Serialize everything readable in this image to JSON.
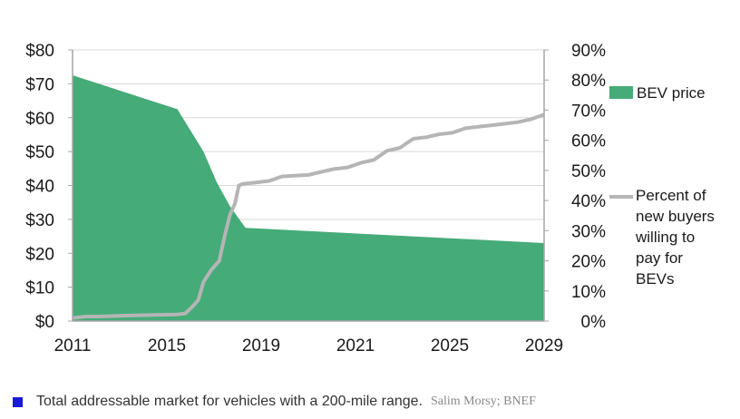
{
  "chart_data": {
    "type": "area",
    "x_tick_labels": [
      "2011",
      "2015",
      "2019",
      "2021",
      "2025",
      "2029"
    ],
    "xlim": [
      2011,
      2029
    ],
    "y_left": {
      "ylim": [
        0,
        80
      ],
      "tick_labels": [
        "$0",
        "$10",
        "$20",
        "$30",
        "$40",
        "$50",
        "$60",
        "$70",
        "$80"
      ]
    },
    "y_right": {
      "ylim": [
        0,
        90
      ],
      "tick_labels": [
        "0%",
        "10%",
        "20%",
        "30%",
        "40%",
        "50%",
        "60%",
        "70%",
        "80%",
        "90%"
      ]
    },
    "grid": true,
    "legend_position": "right",
    "series": [
      {
        "name": "BEV price",
        "type": "area",
        "axis": "left",
        "color": "#45ab78",
        "x": [
          2011,
          2015,
          2016,
          2016.5,
          2017,
          2017.6,
          2029
        ],
        "y": [
          72.5,
          62.5,
          50,
          41,
          34,
          27.5,
          23
        ]
      },
      {
        "name": "Percent of new buyers willing to pay for BEVs",
        "legend_lines": [
          "Percent of",
          "new buyers",
          "willing to",
          "pay for",
          "BEVs"
        ],
        "type": "line",
        "axis": "right",
        "color": "#b5b5b5",
        "x": [
          2011,
          2011.5,
          2012,
          2013,
          2014,
          2015,
          2015.3,
          2015.6,
          2015.8,
          2016,
          2016.3,
          2016.6,
          2016.8,
          2017,
          2017.2,
          2017.35,
          2017.5,
          2018,
          2018.5,
          2019,
          2020,
          2020.5,
          2021,
          2021.5,
          2022,
          2022.5,
          2023,
          2023.5,
          2024,
          2024.5,
          2025,
          2025.5,
          2026,
          2026.5,
          2027,
          2027.5,
          2028,
          2028.5,
          2029
        ],
        "y": [
          1,
          1.5,
          1.5,
          1.8,
          2,
          2.2,
          2.5,
          5,
          7,
          13,
          17,
          20,
          28,
          35,
          39,
          45,
          45.5,
          46,
          46.5,
          48,
          48.5,
          49.5,
          50.5,
          51,
          52.5,
          53.5,
          56.5,
          57.5,
          60.5,
          61,
          62,
          62.5,
          64,
          64.5,
          65,
          65.5,
          66,
          67,
          68.5
        ]
      }
    ]
  },
  "caption": {
    "text": "Total addressable market for vehicles with a 200-mile range.",
    "credit": "Salim Morsy; BNEF",
    "square_color": "#1a1ad6"
  }
}
